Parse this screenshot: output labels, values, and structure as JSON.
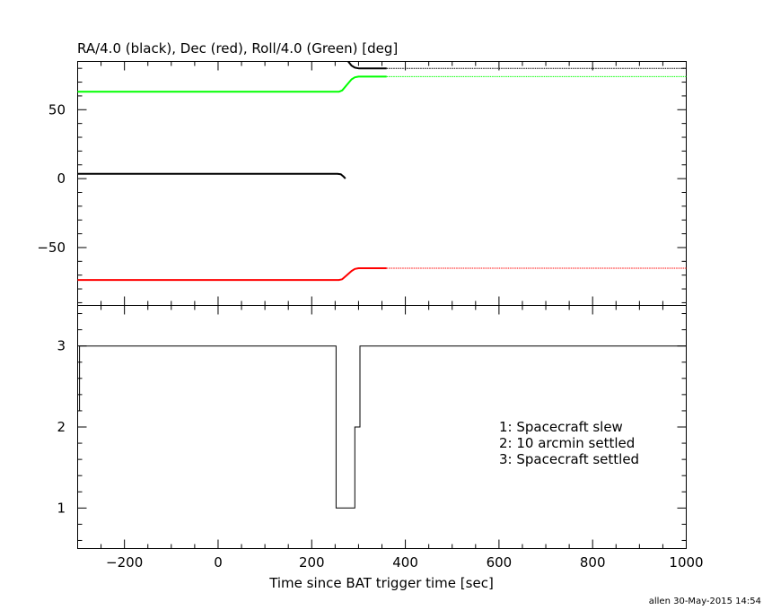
{
  "chart_data": [
    {
      "type": "line",
      "title": "RA/4.0 (black), Dec (red), Roll/4.0 (Green) [deg]",
      "xlim": [
        -300,
        1000
      ],
      "ylim": [
        -92,
        85
      ],
      "yticks": [
        -50,
        0,
        50
      ],
      "ytick_labels": [
        "−50",
        "0",
        "50"
      ],
      "grid": false,
      "series": [
        {
          "color": "#000000",
          "segments": [
            {
              "style": "solid",
              "points": [
                [
                  -300,
                  3.5
                ],
                [
                  255,
                  3.5
                ],
                [
                  262,
                  3.2
                ],
                [
                  268,
                  1.5
                ],
                [
                  272,
                  0
                ]
              ]
            },
            {
              "style": "solid",
              "points": [
                [
                  263,
                  94
                ],
                [
                  270,
                  90
                ],
                [
                  278,
                  85
                ],
                [
                  285,
                  82
                ],
                [
                  292,
                  80.5
                ],
                [
                  300,
                  80
                ],
                [
                  360,
                  80
                ]
              ]
            },
            {
              "style": "dotted",
              "points": [
                [
                  360,
                  80
                ],
                [
                  1000,
                  80
                ]
              ]
            }
          ]
        },
        {
          "color": "#ff0000",
          "segments": [
            {
              "style": "solid",
              "points": [
                [
                  -300,
                  -73.5
                ],
                [
                  258,
                  -73.5
                ],
                [
                  265,
                  -73
                ],
                [
                  275,
                  -70
                ],
                [
                  285,
                  -67
                ],
                [
                  292,
                  -65.5
                ],
                [
                  300,
                  -65
                ],
                [
                  360,
                  -65
                ]
              ]
            },
            {
              "style": "dotted",
              "points": [
                [
                  360,
                  -65
                ],
                [
                  1000,
                  -65
                ]
              ]
            }
          ]
        },
        {
          "color": "#00ff00",
          "segments": [
            {
              "style": "solid",
              "points": [
                [
                  -300,
                  63
                ],
                [
                  258,
                  63
                ],
                [
                  265,
                  64
                ],
                [
                  275,
                  68
                ],
                [
                  285,
                  72
                ],
                [
                  292,
                  73.5
                ],
                [
                  300,
                  74
                ],
                [
                  360,
                  74
                ]
              ]
            },
            {
              "style": "dotted",
              "points": [
                [
                  360,
                  74
                ],
                [
                  1000,
                  74
                ]
              ]
            }
          ]
        }
      ]
    },
    {
      "type": "line",
      "xlabel": "Time since BAT trigger time [sec]",
      "xlim": [
        -300,
        1000
      ],
      "ylim": [
        0.5,
        3.5
      ],
      "xticks": [
        -200,
        0,
        200,
        400,
        600,
        800,
        1000
      ],
      "xtick_labels": [
        "−200",
        "0",
        "200",
        "400",
        "600",
        "800",
        "1000"
      ],
      "yticks": [
        1,
        2,
        3
      ],
      "ytick_labels": [
        "1",
        "2",
        "3"
      ],
      "grid": false,
      "legend_position": "right",
      "legend": [
        "1: Spacecraft slew",
        "2: 10 arcmin settled",
        "3: Spacecraft settled"
      ],
      "series": [
        {
          "color": "#000000",
          "step": true,
          "points": [
            [
              -296,
              2.2
            ],
            [
              -296,
              3
            ],
            [
              252,
              3
            ],
            [
              252,
              1
            ],
            [
              292,
              1
            ],
            [
              292,
              2
            ],
            [
              303,
              2
            ],
            [
              303,
              3
            ],
            [
              1000,
              3
            ]
          ]
        }
      ]
    }
  ],
  "footer": "allen 30-May-2015 14:54"
}
